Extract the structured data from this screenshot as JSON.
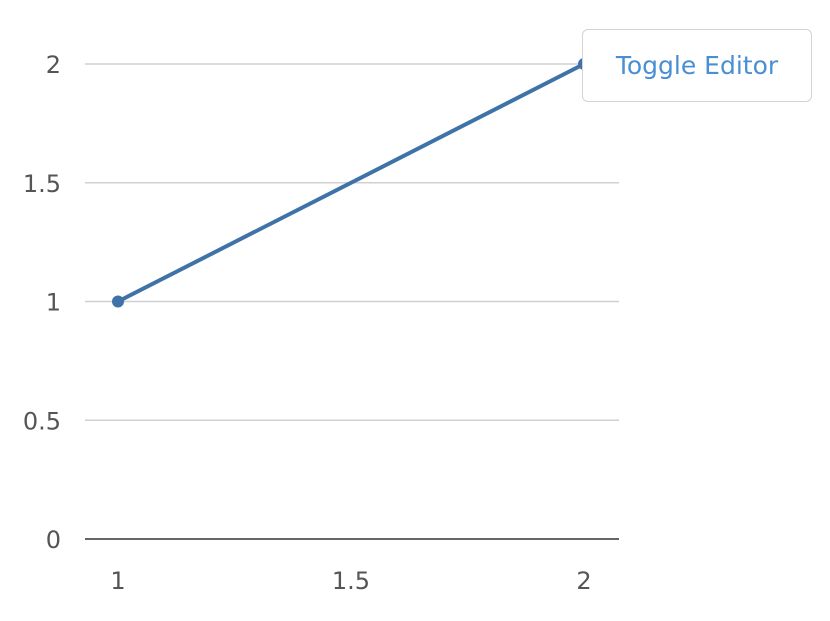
{
  "toolbar": {
    "toggle_editor_label": "Toggle Editor"
  },
  "chart_data": {
    "type": "line",
    "title": "",
    "xlabel": "",
    "ylabel": "",
    "x": [
      1,
      2
    ],
    "series": [
      {
        "values": [
          1,
          2
        ],
        "color": "#3f73a8"
      }
    ],
    "xlim": [
      1,
      2
    ],
    "ylim": [
      0,
      2
    ],
    "x_ticks": [
      1,
      1.5,
      2
    ],
    "x_tick_labels": [
      "1",
      "1.5",
      "2"
    ],
    "y_ticks": [
      0,
      0.5,
      1,
      1.5,
      2
    ],
    "y_tick_labels": [
      "0",
      "0.5",
      "1",
      "1.5",
      "2"
    ],
    "grid": "horizontal",
    "legend": "none",
    "colors": {
      "line": "#3f73a8",
      "grid": "#d0d0d0",
      "axis": "#333333",
      "tick_text": "#555555",
      "button_text": "#4a8fd4"
    }
  }
}
